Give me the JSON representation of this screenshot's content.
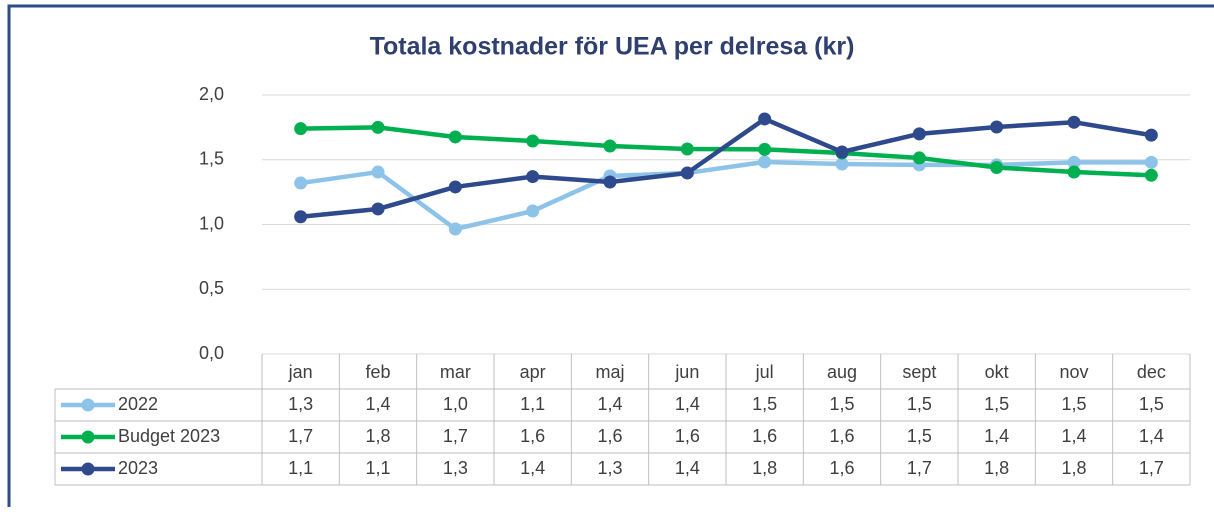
{
  "chart_data": {
    "type": "line",
    "title": "Totala kostnader för UEA per delresa (kr)",
    "categories": [
      "jan",
      "feb",
      "mar",
      "apr",
      "maj",
      "jun",
      "jul",
      "aug",
      "sept",
      "okt",
      "nov",
      "dec"
    ],
    "series": [
      {
        "name": "2022",
        "color": "#8dc3e8",
        "values": [
          1.32,
          1.405,
          0.965,
          1.104,
          1.375,
          1.398,
          1.483,
          1.467,
          1.46,
          1.46,
          1.48,
          1.48
        ],
        "value_labels": [
          "1,3",
          "1,4",
          "1,0",
          "1,1",
          "1,4",
          "1,4",
          "1,5",
          "1,5",
          "1,5",
          "1,5",
          "1,5",
          "1,5"
        ]
      },
      {
        "name": "Budget 2023",
        "color": "#00b050",
        "values": [
          1.74,
          1.75,
          1.676,
          1.645,
          1.606,
          1.583,
          1.58,
          1.552,
          1.514,
          1.44,
          1.405,
          1.38
        ],
        "value_labels": [
          "1,7",
          "1,8",
          "1,7",
          "1,6",
          "1,6",
          "1,6",
          "1,6",
          "1,6",
          "1,5",
          "1,4",
          "1,4",
          "1,4"
        ]
      },
      {
        "name": "2023",
        "color": "#2e4a8c",
        "values": [
          1.06,
          1.12,
          1.29,
          1.37,
          1.328,
          1.398,
          1.815,
          1.56,
          1.7,
          1.753,
          1.79,
          1.69
        ],
        "value_labels": [
          "1,1",
          "1,1",
          "1,3",
          "1,4",
          "1,3",
          "1,4",
          "1,8",
          "1,6",
          "1,7",
          "1,8",
          "1,8",
          "1,7"
        ]
      }
    ],
    "ylim": [
      0,
      2
    ],
    "yticks": [
      {
        "value": 0,
        "label": "0,0"
      },
      {
        "value": 0.5,
        "label": "0,5"
      },
      {
        "value": 1,
        "label": "1,0"
      },
      {
        "value": 1.5,
        "label": "1,5"
      },
      {
        "value": 2,
        "label": "2,0"
      }
    ],
    "grid": true
  }
}
